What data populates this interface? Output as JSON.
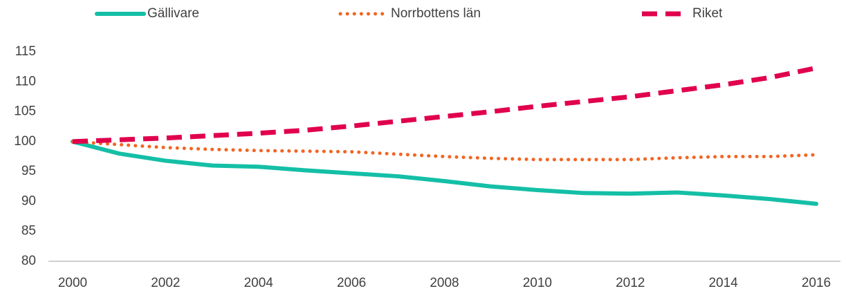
{
  "chart_data": {
    "type": "line",
    "x": [
      2000,
      2001,
      2002,
      2003,
      2004,
      2005,
      2006,
      2007,
      2008,
      2009,
      2010,
      2011,
      2012,
      2013,
      2014,
      2015,
      2016
    ],
    "series": [
      {
        "name": "Gällivare",
        "color": "#14bfa6",
        "style": "solid",
        "values": [
          100,
          98.0,
          96.8,
          96.0,
          95.8,
          95.2,
          94.7,
          94.2,
          93.4,
          92.5,
          91.9,
          91.4,
          91.3,
          91.5,
          91.0,
          90.4,
          89.6
        ]
      },
      {
        "name": "Norrbottens län",
        "color": "#f26522",
        "style": "dotted",
        "values": [
          100,
          99.5,
          99.0,
          98.7,
          98.5,
          98.4,
          98.3,
          97.9,
          97.5,
          97.2,
          97.0,
          97.0,
          97.0,
          97.3,
          97.5,
          97.5,
          97.8
        ]
      },
      {
        "name": "Riket",
        "color": "#e0004d",
        "style": "dashed",
        "values": [
          100,
          100.3,
          100.6,
          101.0,
          101.4,
          101.9,
          102.6,
          103.4,
          104.2,
          105.0,
          105.9,
          106.7,
          107.5,
          108.5,
          109.5,
          110.7,
          112.3
        ]
      }
    ],
    "xlim": [
      2000,
      2016
    ],
    "xticks": [
      2000,
      2002,
      2004,
      2006,
      2008,
      2010,
      2012,
      2014,
      2016
    ],
    "ylim": [
      80,
      115
    ],
    "yticks": [
      80,
      85,
      90,
      95,
      100,
      105,
      110,
      115
    ],
    "grid": false,
    "legend": "top"
  }
}
